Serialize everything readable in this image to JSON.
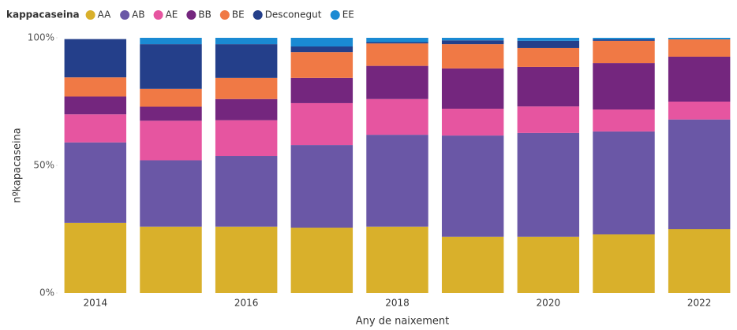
{
  "chart_data": {
    "type": "stacked_bar_100",
    "legend_title": "kappacaseina",
    "x_label": "Any de naixement",
    "y_label": "nºkapacaseina",
    "categories": [
      "2014",
      null,
      "2016",
      null,
      "2018",
      null,
      "2020",
      null,
      "2022"
    ],
    "series": [
      {
        "name": "AA",
        "color": "#d9b02b",
        "values": [
          27.5,
          26,
          26,
          25.6,
          26,
          22,
          22,
          23,
          25
        ]
      },
      {
        "name": "AB",
        "color": "#6a57a6",
        "values": [
          31.5,
          26,
          27.7,
          32.4,
          36,
          39.7,
          40.7,
          40.3,
          43
        ]
      },
      {
        "name": "AE",
        "color": "#e655a0",
        "values": [
          11,
          15.5,
          14,
          16.4,
          14,
          10.5,
          10.4,
          8.6,
          7
        ]
      },
      {
        "name": "BB",
        "color": "#74267e",
        "values": [
          7,
          5.5,
          8.3,
          9.9,
          13,
          15.8,
          15.5,
          18.2,
          17.6
        ]
      },
      {
        "name": "BE",
        "color": "#f07945",
        "values": [
          7.5,
          7,
          8.3,
          10.1,
          8.8,
          9.5,
          7.4,
          8.7,
          6.8
        ]
      },
      {
        "name": "Desconegut",
        "color": "#243f8a",
        "values": [
          15,
          17.5,
          13.2,
          2.2,
          0.5,
          1.5,
          2.8,
          0.6,
          0
        ]
      },
      {
        "name": "EE",
        "color": "#1a8ad3",
        "values": [
          0,
          2.5,
          2.5,
          3.4,
          1.7,
          1,
          1.2,
          0.6,
          0.6
        ]
      }
    ],
    "ylim": [
      0,
      100
    ],
    "yticks": [
      {
        "value": 0,
        "label": "0%"
      },
      {
        "value": 50,
        "label": "50%"
      },
      {
        "value": 100,
        "label": "100%"
      }
    ],
    "grid": false
  }
}
